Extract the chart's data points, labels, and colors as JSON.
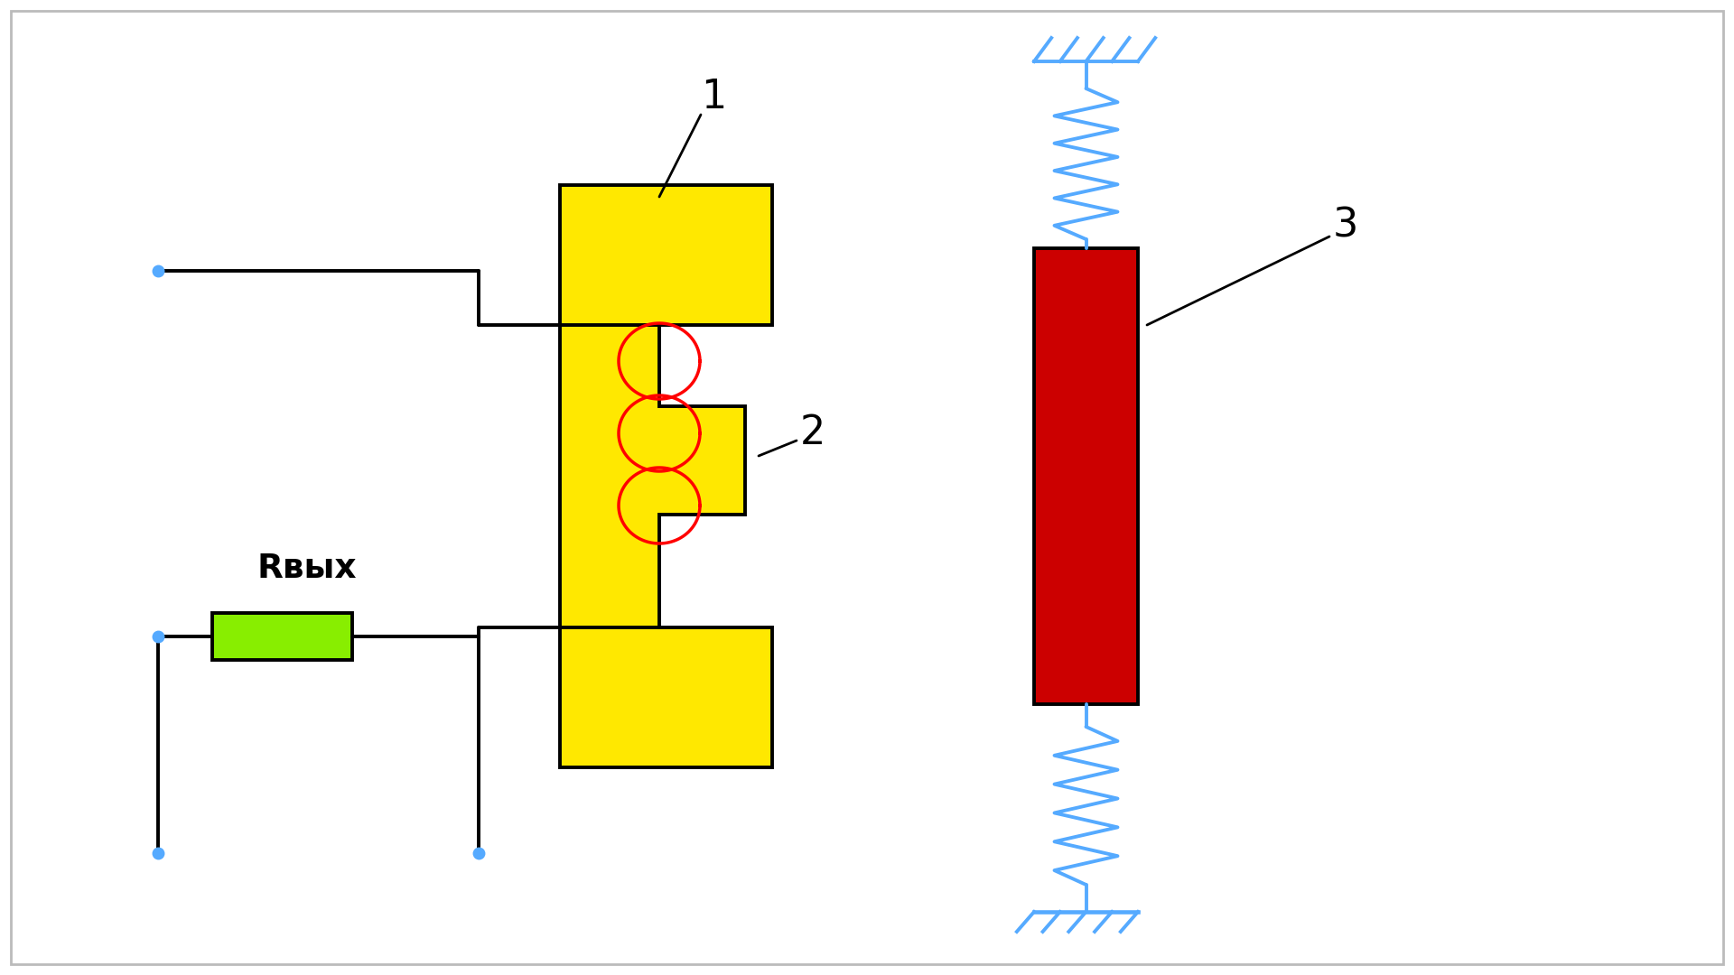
{
  "bg_color": "#ffffff",
  "border_color": "#bbbbbb",
  "black": "#000000",
  "yellow": "#FFE800",
  "red": "#CC0000",
  "green": "#88EE00",
  "blue": "#55AAFF",
  "label_1": "1",
  "label_2": "2",
  "label_3": "3",
  "label_Rvyx": "Rвых",
  "figsize": [
    19.2,
    10.8
  ],
  "dpi": 100
}
